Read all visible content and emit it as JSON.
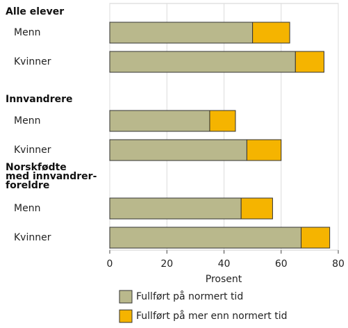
{
  "chart_data": {
    "type": "bar",
    "orientation": "horizontal",
    "stacked": true,
    "groups": [
      "Alle elever",
      "Innvandrere",
      "Norskfødte\nmed innvandrer-\nforeldre"
    ],
    "categories": [
      "Menn",
      "Kvinner",
      "Menn",
      "Kvinner",
      "Menn",
      "Kvinner"
    ],
    "series": [
      {
        "name": "Fullført på normert tid",
        "color": "#b9b88c",
        "values": [
          50,
          65,
          35,
          48,
          46,
          67
        ]
      },
      {
        "name": "Fullført på mer enn normert tid",
        "color": "#f5b400",
        "values": [
          13,
          10,
          9,
          12,
          11,
          10
        ]
      }
    ],
    "xlabel": "Prosent",
    "xlim": [
      0,
      80
    ],
    "xticks": [
      0,
      20,
      40,
      60,
      80
    ],
    "grid": true
  }
}
